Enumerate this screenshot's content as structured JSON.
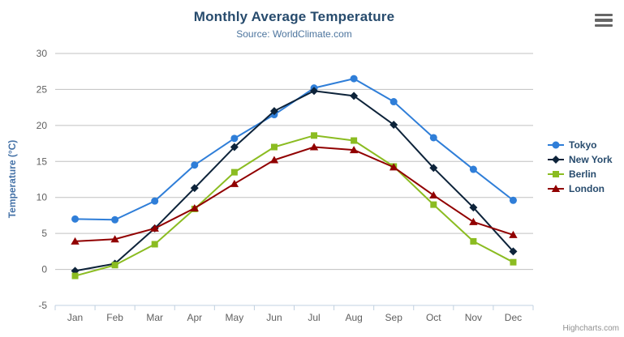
{
  "chart_data": {
    "type": "line",
    "title": "Monthly Average Temperature",
    "subtitle": "Source: WorldClimate.com",
    "xlabel": "",
    "ylabel": "Temperature (°C)",
    "ylim": [
      -5,
      30
    ],
    "ytick_interval": 5,
    "grid": true,
    "legend_position": "right",
    "categories": [
      "Jan",
      "Feb",
      "Mar",
      "Apr",
      "May",
      "Jun",
      "Jul",
      "Aug",
      "Sep",
      "Oct",
      "Nov",
      "Dec"
    ],
    "series": [
      {
        "name": "Tokyo",
        "color": "#2f7ed8",
        "marker": "circle",
        "values": [
          7.0,
          6.9,
          9.5,
          14.5,
          18.2,
          21.5,
          25.2,
          26.5,
          23.3,
          18.3,
          13.9,
          9.6
        ]
      },
      {
        "name": "New York",
        "color": "#0d233a",
        "marker": "diamond",
        "values": [
          -0.2,
          0.8,
          5.7,
          11.3,
          17.0,
          22.0,
          24.8,
          24.1,
          20.1,
          14.1,
          8.6,
          2.5
        ]
      },
      {
        "name": "Berlin",
        "color": "#8bbc21",
        "marker": "square",
        "values": [
          -0.9,
          0.6,
          3.5,
          8.4,
          13.5,
          17.0,
          18.6,
          17.9,
          14.3,
          9.0,
          3.9,
          1.0
        ]
      },
      {
        "name": "London",
        "color": "#910000",
        "marker": "triangle",
        "values": [
          3.9,
          4.2,
          5.7,
          8.5,
          11.9,
          15.2,
          17.0,
          16.6,
          14.2,
          10.3,
          6.6,
          4.8
        ]
      }
    ],
    "colors": {
      "grid_line": "#c0c0c0",
      "axis_line": "#c0d0e0",
      "axis_label": "#606060",
      "title": "#274b6d",
      "subtitle": "#4d759e",
      "y_axis_title": "#4572a7",
      "legend_text": "#274b6d"
    }
  },
  "export_menu": {
    "icon": "hamburger-icon"
  },
  "credits": {
    "label": "Highcharts.com"
  }
}
